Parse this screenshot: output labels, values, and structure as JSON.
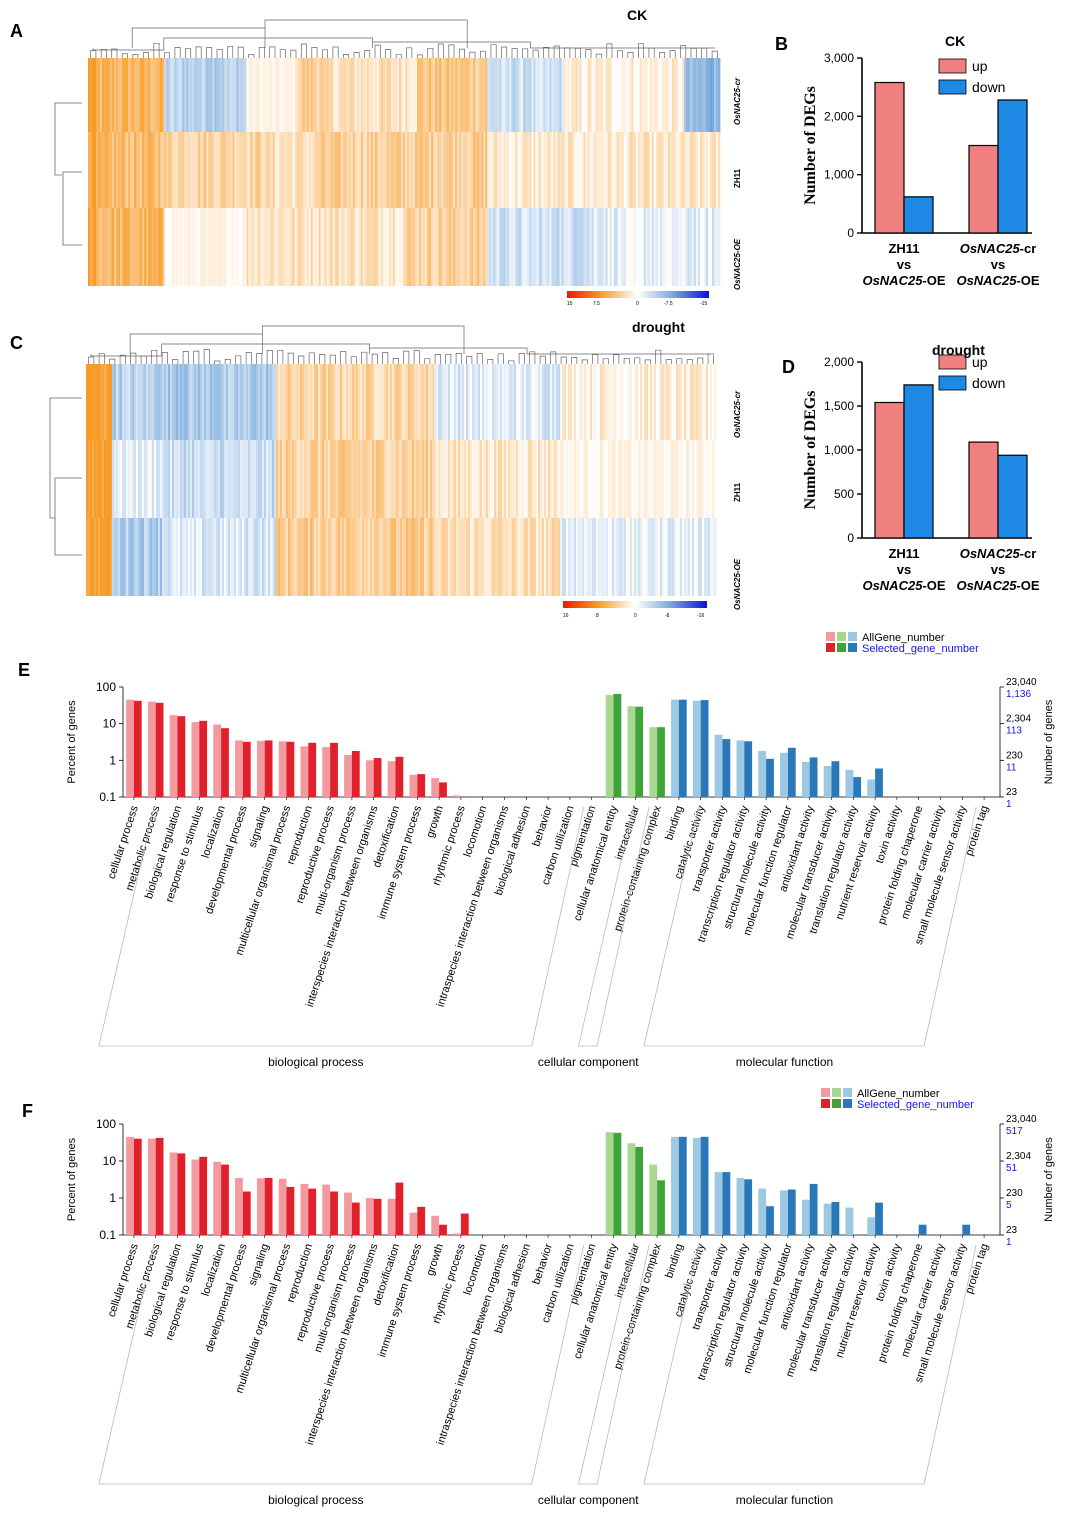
{
  "panel_labels": {
    "a": "A",
    "b": "B",
    "c": "C",
    "d": "D",
    "e": "E",
    "f": "F"
  },
  "heatmaps": [
    {
      "title": "CK",
      "rows": [
        "OsNAC25-cr",
        "ZH11",
        "OsNAC25-OE"
      ],
      "scale_labels": [
        "15",
        "7.5",
        "0",
        "-7.5",
        "-15"
      ]
    },
    {
      "title": "drought",
      "rows": [
        "OsNAC25-cr",
        "ZH11",
        "OsNAC25-OE"
      ],
      "scale_labels": [
        "16",
        "8",
        "0",
        "-8",
        "-16"
      ]
    }
  ],
  "colors": {
    "up": "#F08080",
    "down": "#1E88E5",
    "bp_all": "#F29AA0",
    "bp_sel": "#E0202A",
    "cc_all": "#A8D890",
    "cc_sel": "#3FA33A",
    "mf_all": "#9CC8E4",
    "mf_sel": "#2B78B8",
    "selected_legend_text": "#1515E0"
  },
  "chart_data": [
    {
      "type": "bar",
      "title": "CK",
      "ylabel": "Number of DEGs",
      "ylim": [
        0,
        3000
      ],
      "yticks": [
        "0",
        "1,000",
        "2,000",
        "3,000"
      ],
      "categories": [
        {
          "line1": "ZH11",
          "line2": "vs",
          "line3a": "OsNAC25",
          "line3b": "-OE"
        },
        {
          "line1a": "OsNAC25",
          "line1b": "-cr",
          "line2": "vs",
          "line3a": "OsNAC25",
          "line3b": "-OE"
        }
      ],
      "series": [
        {
          "name": "up",
          "values": [
            2580,
            1500
          ]
        },
        {
          "name": "down",
          "values": [
            620,
            2280
          ]
        }
      ]
    },
    {
      "type": "bar",
      "title": "drought",
      "ylabel": "Number of DEGs",
      "ylim": [
        0,
        2000
      ],
      "yticks": [
        "0",
        "500",
        "1,000",
        "1,500",
        "2,000"
      ],
      "categories": [
        {
          "line1": "ZH11",
          "line2": "vs",
          "line3a": "OsNAC25",
          "line3b": "-OE"
        },
        {
          "line1a": "OsNAC25",
          "line1b": "-cr",
          "line2": "vs",
          "line3a": "OsNAC25",
          "line3b": "-OE"
        }
      ],
      "series": [
        {
          "name": "up",
          "values": [
            1540,
            1090
          ]
        },
        {
          "name": "down",
          "values": [
            1740,
            940
          ]
        }
      ]
    },
    {
      "type": "bar",
      "ylabel": "Percent of genes",
      "y2label": "Number of genes",
      "yscale": "log",
      "ylim": [
        0.1,
        100
      ],
      "yticks": [
        "100",
        "10",
        "1",
        "0.1"
      ],
      "right_ticks_all": [
        "23,040",
        "2,304",
        "230",
        "23"
      ],
      "right_ticks_selected": [
        "1,136",
        "113",
        "11",
        "1"
      ],
      "legend": {
        "all": "AllGene_number",
        "selected": "Selected_gene_number"
      },
      "groups": [
        "biological process",
        "cellular component",
        "molecular function"
      ],
      "categories": [
        "cellular process",
        "metabolic process",
        "biological regulation",
        "response to stimulus",
        "localization",
        "developmental process",
        "signaling",
        "multicellular organismal process",
        "reproduction",
        "reproductive process",
        "multi-organism process",
        "interspecies interaction between organisms",
        "detoxification",
        "immune system process",
        "growth",
        "rhythmic process",
        "locomotion",
        "intraspecies interaction between organisms",
        "biological adhesion",
        "behavior",
        "carbon utilization",
        "pigmentation",
        "cellular anatomical entity",
        "intracellular",
        "protein-containing complex",
        "binding",
        "catalytic activity",
        "transporter activity",
        "transcription regulator activity",
        "structural molecule activity",
        "molecular function regulator",
        "antioxidant activity",
        "molecular transducer activity",
        "translation regulator activity",
        "nutrient reservoir activity",
        "toxin activity",
        "protein folding chaperone",
        "molecular carrier activity",
        "small molecule sensor activity",
        "protein tag"
      ],
      "category_groups": [
        0,
        0,
        0,
        0,
        0,
        0,
        0,
        0,
        0,
        0,
        0,
        0,
        0,
        0,
        0,
        0,
        0,
        0,
        0,
        0,
        0,
        0,
        1,
        1,
        1,
        2,
        2,
        2,
        2,
        2,
        2,
        2,
        2,
        2,
        2,
        2,
        2,
        2,
        2,
        2
      ],
      "series": [
        {
          "name": "AllGene_number",
          "values": [
            45,
            40,
            17,
            11,
            9.5,
            3.5,
            3.4,
            3.3,
            2.4,
            2.3,
            1.4,
            1.0,
            0.95,
            0.4,
            0.33,
            0.11,
            null,
            null,
            null,
            null,
            null,
            null,
            60,
            30,
            8,
            45,
            42,
            5,
            3.5,
            1.8,
            1.6,
            0.9,
            0.7,
            0.55,
            0.3,
            null,
            null,
            null,
            null,
            null
          ]
        },
        {
          "name": "Selected_gene_number",
          "values": [
            42,
            37,
            16,
            12,
            7.5,
            3.2,
            3.5,
            3.2,
            3.0,
            3.0,
            1.8,
            1.15,
            1.25,
            0.42,
            0.25,
            null,
            null,
            null,
            null,
            null,
            null,
            null,
            65,
            29,
            8,
            45,
            44,
            3.8,
            3.3,
            1.1,
            2.2,
            1.2,
            0.95,
            0.35,
            0.6,
            null,
            null,
            null,
            null,
            null
          ]
        }
      ]
    },
    {
      "type": "bar",
      "ylabel": "Percent of genes",
      "y2label": "Number of genes",
      "yscale": "log",
      "ylim": [
        0.1,
        100
      ],
      "yticks": [
        "100",
        "10",
        "1",
        "0.1"
      ],
      "right_ticks_all": [
        "23,040",
        "2,304",
        "230",
        "23"
      ],
      "right_ticks_selected": [
        "517",
        "51",
        "5",
        "1"
      ],
      "legend": {
        "all": "AllGene_number",
        "selected": "Selected_gene_number"
      },
      "groups": [
        "biological process",
        "cellular component",
        "molecular function"
      ],
      "categories": [
        "cellular process",
        "metabolic process",
        "biological regulation",
        "response to stimulus",
        "localization",
        "developmental process",
        "signaling",
        "multicellular organismal process",
        "reproduction",
        "reproductive process",
        "multi-organism process",
        "interspecies interaction between organisms",
        "detoxification",
        "immune system process",
        "growth",
        "rhythmic process",
        "locomotion",
        "intraspecies interaction between organisms",
        "biological adhesion",
        "behavior",
        "carbon utilization",
        "pigmentation",
        "cellular anatomical entity",
        "intracellular",
        "protein-containing complex",
        "binding",
        "catalytic activity",
        "transporter activity",
        "transcription regulator activity",
        "structural molecule activity",
        "molecular function regulator",
        "antioxidant activity",
        "molecular transducer activity",
        "translation regulator activity",
        "nutrient reservoir activity",
        "toxin activity",
        "protein folding chaperone",
        "molecular carrier activity",
        "small molecule sensor activity",
        "protein tag"
      ],
      "category_groups": [
        0,
        0,
        0,
        0,
        0,
        0,
        0,
        0,
        0,
        0,
        0,
        0,
        0,
        0,
        0,
        0,
        0,
        0,
        0,
        0,
        0,
        0,
        1,
        1,
        1,
        2,
        2,
        2,
        2,
        2,
        2,
        2,
        2,
        2,
        2,
        2,
        2,
        2,
        2,
        2
      ],
      "series": [
        {
          "name": "AllGene_number",
          "values": [
            45,
            40,
            17,
            11,
            9.5,
            3.5,
            3.4,
            3.3,
            2.4,
            2.3,
            1.4,
            1.0,
            0.95,
            0.4,
            0.33,
            0.11,
            null,
            null,
            null,
            null,
            null,
            null,
            60,
            30,
            8,
            45,
            42,
            5,
            3.5,
            1.8,
            1.6,
            0.9,
            0.7,
            0.55,
            0.3,
            null,
            null,
            null,
            null,
            null
          ]
        },
        {
          "name": "Selected_gene_number",
          "values": [
            40,
            42,
            16,
            13,
            8,
            1.5,
            3.5,
            2.0,
            1.8,
            1.5,
            0.75,
            0.95,
            2.6,
            0.58,
            0.19,
            0.38,
            null,
            null,
            null,
            null,
            null,
            null,
            58,
            24,
            3,
            45,
            45,
            5,
            3.2,
            0.6,
            1.7,
            2.4,
            0.78,
            null,
            0.75,
            null,
            0.19,
            null,
            0.19,
            null
          ]
        }
      ]
    }
  ]
}
